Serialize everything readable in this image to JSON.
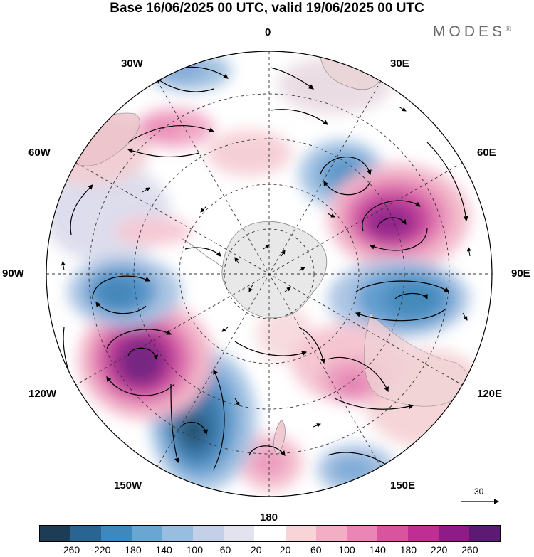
{
  "title": "Base 16/06/2025 00 UTC, valid 19/06/2025 00 UTC",
  "brand": {
    "name": "MODES",
    "mark": "®"
  },
  "longitude_labels": {
    "lon_0": "0",
    "lon_30e": "30E",
    "lon_60e": "60E",
    "lon_90e": "90E",
    "lon_120e": "120E",
    "lon_150e": "150E",
    "lon_180": "180",
    "lon_150w": "150W",
    "lon_120w": "120W",
    "lon_90w": "90W",
    "lon_60w": "60W",
    "lon_30w": "30W"
  },
  "reference_vector": {
    "value": "30"
  },
  "legend": {
    "ticks": [
      "-260",
      "-220",
      "-180",
      "-140",
      "-100",
      "-60",
      "-20",
      "20",
      "60",
      "100",
      "140",
      "180",
      "220",
      "260"
    ],
    "colors": [
      "#1d3c55",
      "#2a6592",
      "#3e88bd",
      "#6aa6d2",
      "#97bde0",
      "#c4cfe8",
      "#e3e3f0",
      "#ffffff",
      "#f8d4d8",
      "#f2aec4",
      "#ea86b6",
      "#d9549f",
      "#bf2e92",
      "#8e1c87",
      "#5c1a73"
    ]
  }
}
